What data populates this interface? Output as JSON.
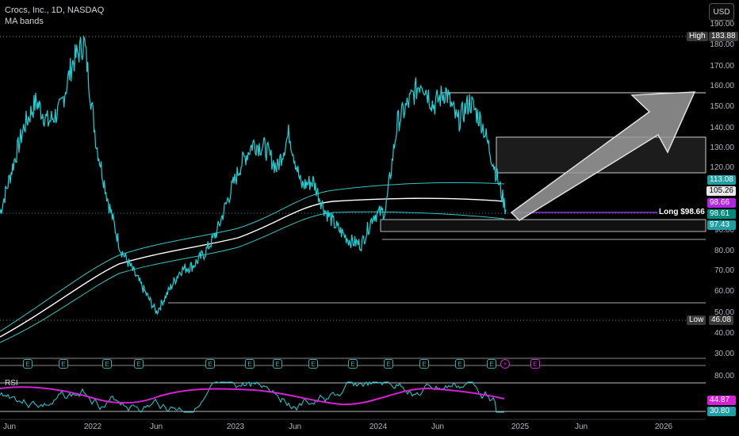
{
  "legend": {
    "symbol_line": "Crocs, Inc., 1D, NASDAQ",
    "indicator": "MA bands",
    "rsi_label": "RSI"
  },
  "currency_button": "USD",
  "price_axis": {
    "ticks": [
      "190.00",
      "180.00",
      "170.00",
      "160.00",
      "150.00",
      "140.00",
      "130.00",
      "120.00",
      "90.00",
      "80.00",
      "70.00",
      "60.00",
      "50.00",
      "40.00",
      "30.00"
    ]
  },
  "price_tags": {
    "high_label": "High",
    "high_value": "183.88",
    "low_label": "Low",
    "low_value": "46.08",
    "band_upper": "113.08",
    "band_mid": "105.26",
    "entry": "98.66",
    "last": "98.61",
    "band_lower": "97.43",
    "long_label": "Long $98.66"
  },
  "rsi_axis": {
    "top_tick": "80.00",
    "ma_value": "44.87",
    "rsi_value": "30.80"
  },
  "x_axis": {
    "labels": [
      "Jun",
      "2022",
      "Jun",
      "2023",
      "Jun",
      "2024",
      "Jun",
      "2025",
      "Jun",
      "2026"
    ]
  },
  "events": {
    "earnings_glyph": "E",
    "dividend_glyph": "⚡"
  },
  "colors": {
    "background": "#000000",
    "price_line": "#1fd1d6",
    "ma_band": "#31c7c2",
    "ma_mid": "#ffffff",
    "rsi": "#1fd1d6",
    "rsi_ma": "#d321d3",
    "entry_line": "#8c33e0",
    "last_price": "#00897b"
  },
  "chart_data": {
    "type": "line",
    "title": "Crocs, Inc., 1D, NASDAQ",
    "xlabel": "",
    "ylabel": "",
    "ylim": [
      25,
      195
    ],
    "x": [
      "2021-05",
      "2021-06",
      "2021-07",
      "2021-08",
      "2021-09",
      "2021-10",
      "2021-11",
      "2021-12",
      "2022-01",
      "2022-02",
      "2022-03",
      "2022-04",
      "2022-05",
      "2022-06",
      "2022-07",
      "2022-08",
      "2022-09",
      "2022-10",
      "2022-11",
      "2022-12",
      "2023-01",
      "2023-02",
      "2023-03",
      "2023-04",
      "2023-05",
      "2023-06",
      "2023-07",
      "2023-08",
      "2023-09",
      "2023-10",
      "2023-11",
      "2023-12",
      "2024-01",
      "2024-02",
      "2024-03",
      "2024-04",
      "2024-05",
      "2024-06",
      "2024-07",
      "2024-08",
      "2024-09",
      "2024-10",
      "2024-11"
    ],
    "series": [
      {
        "values": [
          97,
          118,
          138,
          150,
          140,
          146,
          168,
          178,
          130,
          102,
          80,
          70,
          60,
          50,
          60,
          70,
          72,
          78,
          88,
          105,
          120,
          130,
          128,
          118,
          135,
          110,
          112,
          98,
          90,
          84,
          82,
          96,
          98,
          140,
          150,
          160,
          148,
          155,
          140,
          150,
          140,
          120,
          98.61
        ]
      }
    ],
    "high": 183.88,
    "low": 46.08,
    "ma_bands": {
      "upper": 113.08,
      "mid": 105.26,
      "lower": 97.43
    },
    "long_entry": 98.66,
    "last_price": 98.61,
    "rsi": {
      "range": [
        20,
        80
      ],
      "value": 30.8,
      "ma": 44.87
    },
    "grid": false
  }
}
